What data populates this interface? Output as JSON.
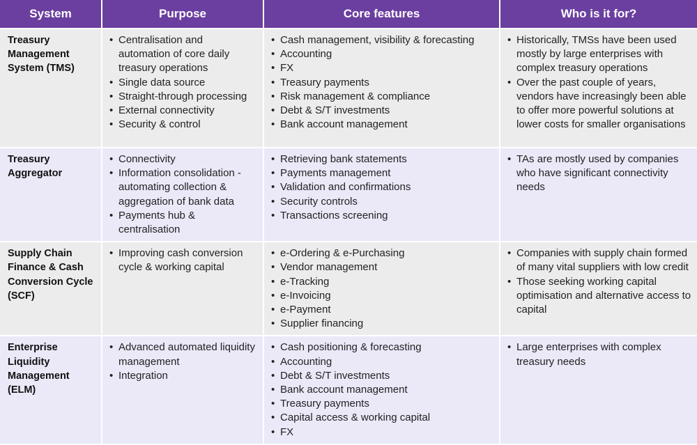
{
  "headers": [
    "System",
    "Purpose",
    "Core features",
    "Who is it for?"
  ],
  "rows": [
    {
      "system": "Treasury Management System (TMS)",
      "purpose": [
        "Centralisation and automation of core daily treasury operations",
        "Single data source",
        "Straight-through processing",
        "External connectivity",
        "Security & control"
      ],
      "features": [
        "Cash management, visibility & forecasting",
        "Accounting",
        "FX",
        "Treasury payments",
        "Risk management & compliance",
        "Debt & S/T investments",
        "Bank account management"
      ],
      "audience": [
        "Historically, TMSs have been used mostly by large enterprises with complex treasury operations",
        "Over the past couple of years, vendors have increasingly been able to offer more powerful solutions at lower costs for smaller organisations"
      ]
    },
    {
      "system": "Treasury Aggregator",
      "purpose": [
        "Connectivity",
        "Information consolidation - automating collection & aggregation of bank data",
        "Payments hub & centralisation"
      ],
      "features": [
        "Retrieving bank statements",
        "Payments management",
        "Validation and confirmations",
        "Security controls",
        "Transactions screening"
      ],
      "audience": [
        "TAs are mostly used by companies who have significant connectivity needs"
      ]
    },
    {
      "system": "Supply Chain Finance & Cash Conversion Cycle (SCF)",
      "purpose": [
        "Improving cash conversion cycle & working capital"
      ],
      "features": [
        "e-Ordering & e-Purchasing",
        "Vendor management",
        "e-Tracking",
        "e-Invoicing",
        "e-Payment",
        "Supplier financing"
      ],
      "audience": [
        "Companies with supply chain formed of many vital suppliers with low credit",
        "Those seeking working capital optimisation and alternative access to capital"
      ]
    },
    {
      "system": "Enterprise Liquidity Management (ELM)",
      "purpose": [
        "Advanced automated liquidity management",
        "Integration"
      ],
      "features": [
        "Cash positioning & forecasting",
        "Accounting",
        "Debt & S/T investments",
        "Bank account management",
        "Treasury payments",
        "Capital access & working capital",
        "FX"
      ],
      "audience": [
        "Large enterprises with complex treasury needs"
      ]
    }
  ]
}
